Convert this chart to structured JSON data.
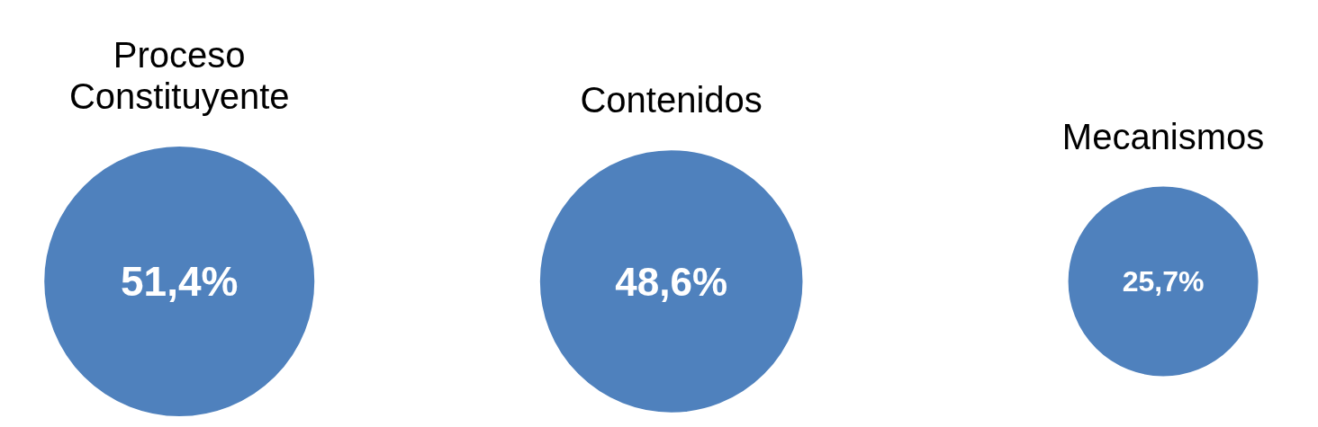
{
  "chart_data": {
    "type": "other",
    "categories": [
      "Proceso Constituyente",
      "Contenidos",
      "Mecanismos"
    ],
    "values": [
      51.4,
      48.6,
      25.7
    ],
    "value_labels": [
      "51,4%",
      "48,6%",
      "25,7%"
    ],
    "color": "#4f81bd"
  }
}
